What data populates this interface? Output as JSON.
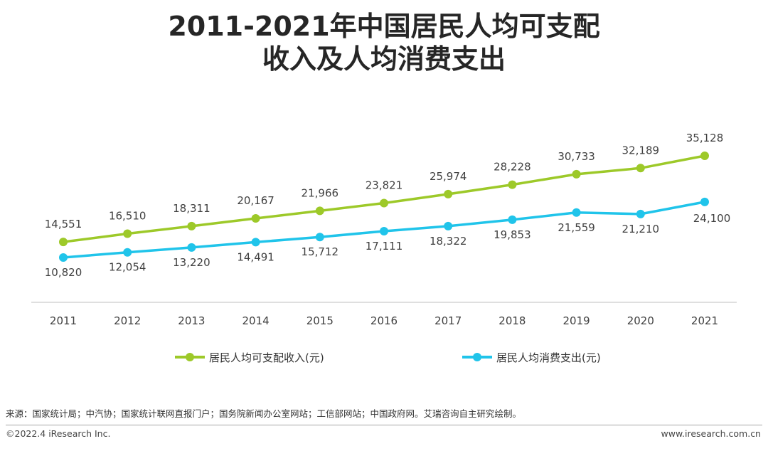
{
  "title_line1": "2011-2021年中国居民人均可支配",
  "title_line2": "收入及人均消费支出",
  "colors": {
    "income": "#9dc929",
    "spending": "#20c4ea",
    "axis": "#bfbfbf"
  },
  "chart_data": {
    "type": "line",
    "title": "2011-2021年中国居民人均可支配收入及人均消费支出",
    "categories": [
      "2011",
      "2012",
      "2013",
      "2014",
      "2015",
      "2016",
      "2017",
      "2018",
      "2019",
      "2020",
      "2021"
    ],
    "series": [
      {
        "name": "居民人均可支配收入(元)",
        "values": [
          14551,
          16510,
          18311,
          20167,
          21966,
          23821,
          25974,
          28228,
          30733,
          32189,
          35128
        ],
        "labels": [
          "14,551",
          "16,510",
          "18,311",
          "20,167",
          "21,966",
          "23,821",
          "25,974",
          "28,228",
          "30,733",
          "32,189",
          "35,128"
        ]
      },
      {
        "name": "居民人均消费支出(元)",
        "values": [
          10820,
          12054,
          13220,
          14491,
          15712,
          17111,
          18322,
          19853,
          21559,
          21210,
          24100
        ],
        "labels": [
          "10,820",
          "12,054",
          "13,220",
          "14,491",
          "15,712",
          "17,111",
          "18,322",
          "19,853",
          "21,559",
          "21,210",
          "24,100"
        ]
      }
    ],
    "legend": "bottom"
  },
  "source": "来源：国家统计局；中汽协；国家统计联网直报门户；国务院新闻办公室网站；工信部网站；中国政府网。艾瑞咨询自主研究绘制。",
  "copyright": "©2022.4 iResearch Inc.",
  "website": "www.iresearch.com.cn"
}
